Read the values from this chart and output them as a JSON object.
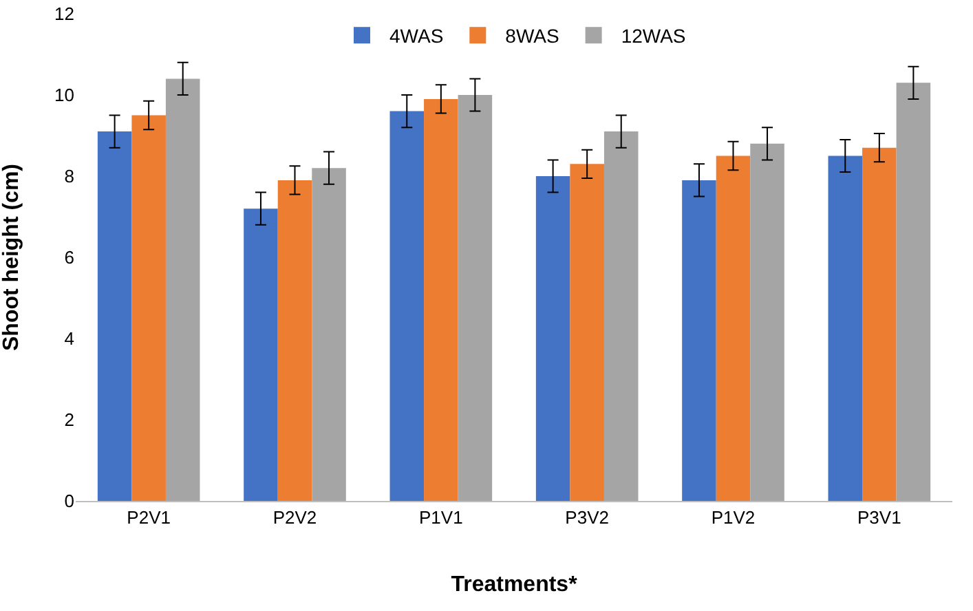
{
  "chart_data": {
    "type": "bar",
    "xlabel": "Treatments*",
    "ylabel": "Shoot height (cm)",
    "categories": [
      "P2V1",
      "P2V2",
      "P1V1",
      "P3V2",
      "P1V2",
      "P3V1"
    ],
    "series": [
      {
        "name": "4WAS",
        "color": "#4472c4",
        "values": [
          9.1,
          7.2,
          9.6,
          8.0,
          7.9,
          8.5
        ],
        "errors": [
          0.4,
          0.4,
          0.4,
          0.4,
          0.4,
          0.4
        ]
      },
      {
        "name": "8WAS",
        "color": "#ed7d31",
        "values": [
          9.5,
          7.9,
          9.9,
          8.3,
          8.5,
          8.7
        ],
        "errors": [
          0.35,
          0.35,
          0.35,
          0.35,
          0.35,
          0.35
        ]
      },
      {
        "name": "12WAS",
        "color": "#a5a5a5",
        "values": [
          10.4,
          8.2,
          10.0,
          9.1,
          8.8,
          10.3
        ],
        "errors": [
          0.4,
          0.4,
          0.4,
          0.4,
          0.4,
          0.4
        ]
      }
    ],
    "ylim": [
      0,
      12
    ],
    "yticks": [
      0,
      2,
      4,
      6,
      8,
      10,
      12
    ],
    "grid": false,
    "legend": "top"
  }
}
